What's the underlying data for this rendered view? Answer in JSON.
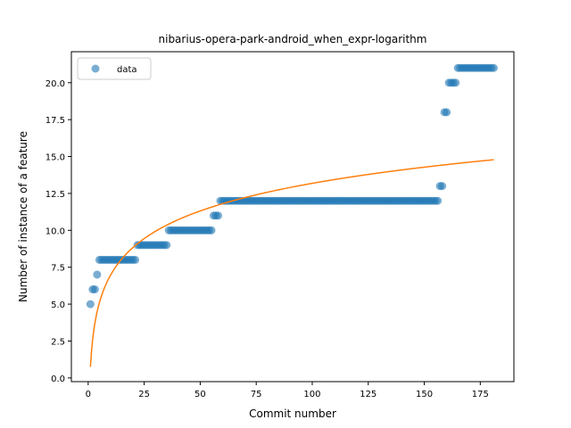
{
  "chart_data": {
    "type": "scatter",
    "title": "nibarius-opera-park-android_when_expr-logarithm",
    "xlabel": "Commit number",
    "ylabel": "Number of instance of a feature",
    "xlim": [
      -7.5,
      190
    ],
    "ylim": [
      -0.25,
      22.1
    ],
    "xticks": [
      0,
      25,
      50,
      75,
      100,
      125,
      150,
      175
    ],
    "yticks": [
      0.0,
      2.5,
      5.0,
      7.5,
      10.0,
      12.5,
      15.0,
      17.5,
      20.0
    ],
    "grid": false,
    "legend": {
      "position": "top-left",
      "entries": [
        "data"
      ]
    },
    "colors": {
      "data": "#1f77b4",
      "fit": "#ff7f0e"
    },
    "series": [
      {
        "name": "data",
        "kind": "scatter",
        "segments": [
          {
            "x_from": 1,
            "x_to": 1,
            "y": 5
          },
          {
            "x_from": 2,
            "x_to": 3,
            "y": 6
          },
          {
            "x_from": 4,
            "x_to": 4,
            "y": 7
          },
          {
            "x_from": 5,
            "x_to": 21,
            "y": 8
          },
          {
            "x_from": 22,
            "x_to": 35,
            "y": 9
          },
          {
            "x_from": 36,
            "x_to": 55,
            "y": 10
          },
          {
            "x_from": 56,
            "x_to": 58,
            "y": 11
          },
          {
            "x_from": 59,
            "x_to": 156,
            "y": 12
          },
          {
            "x_from": 157,
            "x_to": 158,
            "y": 13
          },
          {
            "x_from": 159,
            "x_to": 160,
            "y": 18
          },
          {
            "x_from": 161,
            "x_to": 164,
            "y": 20
          },
          {
            "x_from": 165,
            "x_to": 181,
            "y": 21
          }
        ]
      },
      {
        "kind": "line",
        "model": "logarithmic",
        "a": 0.75,
        "b": 2.7,
        "x_range": [
          1,
          181
        ]
      }
    ]
  }
}
